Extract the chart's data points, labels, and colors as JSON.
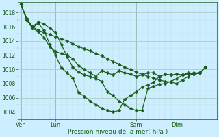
{
  "background_color": "#cceeff",
  "grid_major_color": "#aacccc",
  "grid_minor_color": "#bbdddd",
  "line_color": "#1a5c1a",
  "marker": "D",
  "marker_size": 2.5,
  "line_width": 0.9,
  "xlabel_text": "Pression niveau de la mer( hPa )",
  "yticks": [
    1004,
    1006,
    1008,
    1010,
    1012,
    1014,
    1016,
    1018
  ],
  "ylim": [
    1003.0,
    1019.5
  ],
  "xtick_labels": [
    "Ven",
    "Lun",
    "Sam",
    "Dim"
  ],
  "xtick_positions": [
    0,
    6,
    20,
    27
  ],
  "xlim": [
    -0.5,
    34
  ],
  "series": [
    {
      "x": [
        0,
        1,
        2,
        3,
        4,
        5,
        6,
        7,
        8,
        9,
        10,
        11,
        12,
        13,
        14,
        15,
        16,
        17,
        18,
        19,
        20,
        21,
        22,
        23,
        24,
        25,
        26,
        27,
        28,
        29,
        30,
        31,
        32
      ],
      "y": [
        1019.2,
        1017.2,
        1016.0,
        1015.5,
        1015.2,
        1014.9,
        1014.6,
        1014.3,
        1014.0,
        1013.6,
        1013.2,
        1012.9,
        1012.6,
        1012.2,
        1011.9,
        1011.5,
        1011.1,
        1010.7,
        1010.3,
        1010.0,
        1009.6,
        1009.3,
        1009.0,
        1008.8,
        1008.5,
        1008.3,
        1008.2,
        1008.0,
        1008.5,
        1009.0,
        1009.5,
        1009.5,
        1010.3
      ]
    },
    {
      "x": [
        0,
        1,
        2,
        3,
        4,
        5,
        6,
        7,
        8,
        9,
        10,
        11,
        12,
        13,
        14,
        15,
        16,
        17,
        18,
        19,
        20,
        21,
        22,
        23,
        24,
        25,
        26,
        27,
        28,
        29,
        30,
        31,
        32
      ],
      "y": [
        1019.2,
        1017.0,
        1016.0,
        1016.7,
        1016.4,
        1015.8,
        1015.2,
        1013.5,
        1011.8,
        1010.3,
        1009.6,
        1009.2,
        1009.0,
        1008.7,
        1008.3,
        1006.8,
        1006.3,
        1005.5,
        1005.0,
        1004.5,
        1004.2,
        1004.2,
        1007.3,
        1007.6,
        1007.9,
        1008.0,
        1008.3,
        1008.7,
        1009.2,
        1009.5,
        1009.3,
        1009.5,
        1010.3
      ]
    },
    {
      "x": [
        0,
        1,
        2,
        3,
        4,
        5,
        6,
        7,
        8,
        9,
        10,
        11,
        12,
        13,
        14,
        15,
        16,
        17,
        18,
        19,
        20,
        21,
        22,
        23,
        24,
        25,
        26,
        27,
        28,
        29,
        30,
        31,
        32
      ],
      "y": [
        1019.2,
        1017.0,
        1015.8,
        1016.5,
        1015.5,
        1013.5,
        1012.0,
        1010.2,
        1009.5,
        1008.8,
        1006.7,
        1006.2,
        1005.5,
        1005.0,
        1004.5,
        1004.2,
        1004.0,
        1004.2,
        1005.8,
        1006.3,
        1006.8,
        1007.5,
        1007.8,
        1008.2,
        1009.0,
        1009.3,
        1009.2,
        1009.3,
        1009.2,
        1009.4,
        1009.3,
        1009.5,
        1010.3
      ]
    },
    {
      "x": [
        0,
        1,
        2,
        3,
        4,
        5,
        6,
        7,
        8,
        9,
        10,
        11,
        12,
        13,
        14,
        15,
        16,
        17,
        18,
        19,
        20,
        21,
        22,
        23,
        24,
        25,
        26,
        27,
        28,
        29,
        30,
        31,
        32
      ],
      "y": [
        1019.2,
        1017.0,
        1015.8,
        1015.3,
        1014.5,
        1013.2,
        1012.5,
        1012.2,
        1012.0,
        1011.5,
        1010.5,
        1010.0,
        1009.5,
        1009.0,
        1009.8,
        1009.5,
        1009.2,
        1009.8,
        1009.5,
        1009.3,
        1009.0,
        1009.2,
        1009.5,
        1009.5,
        1009.0,
        1009.3,
        1009.2,
        1009.3,
        1009.2,
        1009.4,
        1009.3,
        1009.5,
        1010.3
      ]
    }
  ]
}
